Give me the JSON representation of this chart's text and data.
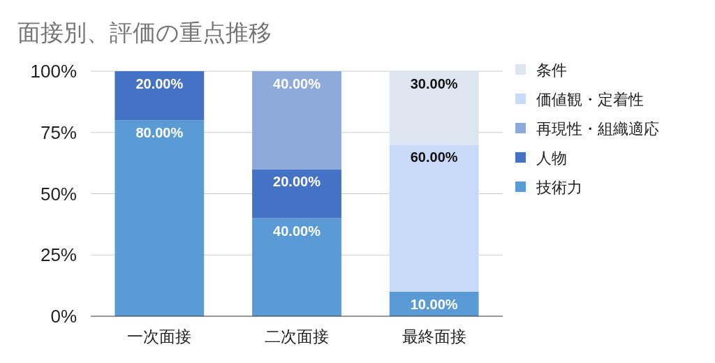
{
  "chart_data": {
    "type": "bar",
    "stacked": true,
    "title": "面接別、評価の重点推移",
    "categories": [
      "一次面接",
      "二次面接",
      "最終面接"
    ],
    "series": [
      {
        "name": "技術力",
        "color": "#5b9bd5",
        "values": [
          80,
          40,
          10
        ],
        "value_labels": [
          "80.00%",
          "40.00%",
          "10.00%"
        ]
      },
      {
        "name": "人物",
        "color": "#4472c4",
        "values": [
          20,
          20,
          0
        ],
        "value_labels": [
          "20.00%",
          "20.00%",
          null
        ]
      },
      {
        "name": "再現性・組織適応",
        "color": "#8eaadb",
        "values": [
          0,
          40,
          0
        ],
        "value_labels": [
          null,
          "40.00%",
          null
        ]
      },
      {
        "name": "価値観・定着性",
        "color": "#c9daf8",
        "values": [
          0,
          0,
          60
        ],
        "value_labels": [
          null,
          null,
          "60.00%"
        ]
      },
      {
        "name": "条件",
        "color": "#dde6f0",
        "values": [
          0,
          0,
          30
        ],
        "value_labels": [
          null,
          null,
          "30.00%"
        ]
      }
    ],
    "ylim": [
      0,
      100
    ],
    "yticks": [
      {
        "value": 0,
        "label": "0%"
      },
      {
        "value": 25,
        "label": "25%"
      },
      {
        "value": 50,
        "label": "50%"
      },
      {
        "value": 75,
        "label": "75%"
      },
      {
        "value": 100,
        "label": "100%"
      }
    ],
    "grid": "y",
    "legend": "right"
  }
}
